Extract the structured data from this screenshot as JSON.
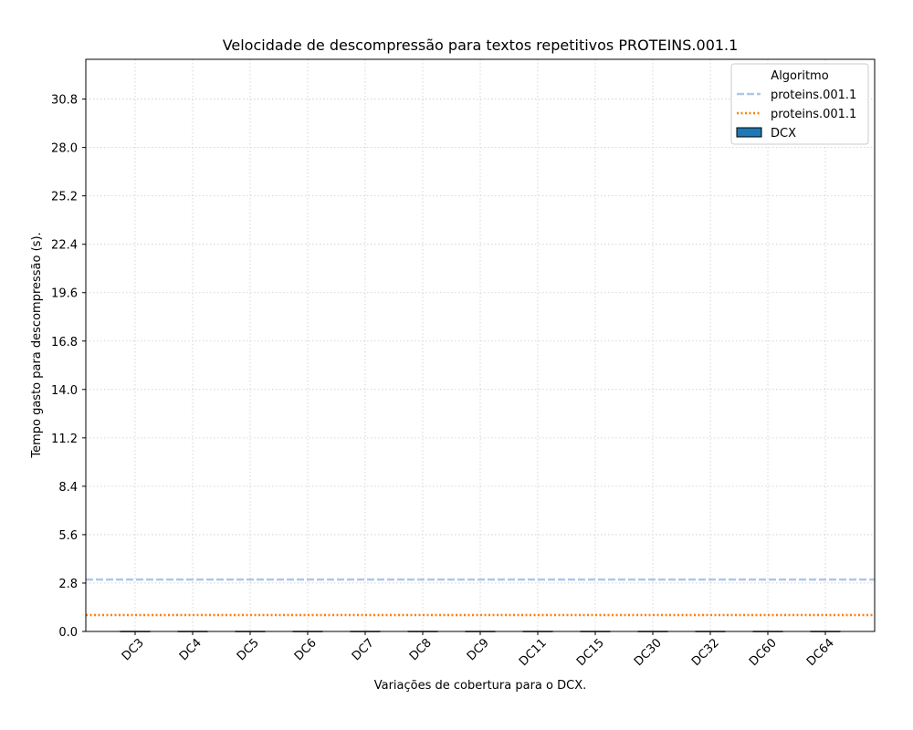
{
  "chart_data": {
    "type": "bar",
    "title": "Velocidade de descompressão para textos repetitivos PROTEINS.001.1",
    "xlabel": "Variações de cobertura para o DCX.",
    "ylabel": "Tempo gasto para descompressão (s).",
    "categories": [
      "DC3",
      "DC4",
      "DC5",
      "DC6",
      "DC7",
      "DC8",
      "DC9",
      "DC11",
      "DC15",
      "DC30",
      "DC32",
      "DC60",
      "DC64"
    ],
    "series": [
      {
        "name": "DCX",
        "color": "#1f77b4",
        "values": [
          0.01,
          0.01,
          0.01,
          0.01,
          0.01,
          0.01,
          0.01,
          0.01,
          0.01,
          0.01,
          0.01,
          0.01,
          0.01
        ]
      }
    ],
    "reference_lines": [
      {
        "name": "proteins.001.1",
        "value": 3.0,
        "color": "#aec7e8",
        "style": "dashed"
      },
      {
        "name": "proteins.001.1",
        "value": 0.95,
        "color": "#ff7f0e",
        "style": "dotted"
      }
    ],
    "yticks": [
      0.0,
      2.8,
      5.6,
      8.4,
      11.2,
      14.0,
      16.8,
      19.6,
      22.4,
      25.2,
      28.0,
      30.8
    ],
    "ytick_labels": [
      "0.0",
      "2.8",
      "5.6",
      "8.4",
      "11.2",
      "14.0",
      "16.8",
      "19.6",
      "22.4",
      "25.2",
      "28.0",
      "30.8"
    ],
    "ylim": [
      0,
      33.1
    ],
    "grid": true,
    "legend": {
      "title": "Algoritmo",
      "placement": "top-right"
    }
  }
}
